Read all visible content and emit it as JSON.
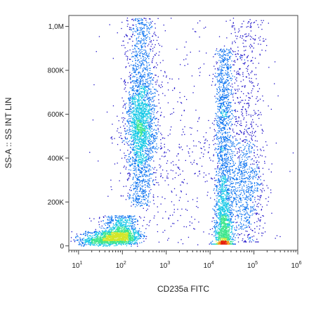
{
  "chart_data": {
    "type": "scatter",
    "plot_style": "flow cytometry density dot plot (pseudocolor)",
    "xlabel": "CD235a FITC",
    "ylabel": "SS-A :: SS INT LIN",
    "x_scale": "log",
    "y_scale": "linear",
    "xlim": [
      6,
      1000000
    ],
    "ylim": [
      -20000,
      1050000
    ],
    "x_ticks": [
      {
        "value": 10,
        "base": "10",
        "exp": "1"
      },
      {
        "value": 100,
        "base": "10",
        "exp": "2"
      },
      {
        "value": 1000,
        "base": "10",
        "exp": "3"
      },
      {
        "value": 10000,
        "base": "10",
        "exp": "4"
      },
      {
        "value": 100000,
        "base": "10",
        "exp": "5"
      },
      {
        "value": 1000000,
        "base": "10",
        "exp": "6"
      }
    ],
    "y_ticks": [
      {
        "value": 0,
        "label": "0"
      },
      {
        "value": 200000,
        "label": "200K"
      },
      {
        "value": 400000,
        "label": "400K"
      },
      {
        "value": 600000,
        "label": "600K"
      },
      {
        "value": 800000,
        "label": "800K"
      },
      {
        "value": 1000000,
        "label": "1,0M"
      }
    ],
    "grid": false,
    "legend": "none",
    "density_colors": [
      "#1a0dc8",
      "#0a72f0",
      "#14c8e6",
      "#3ce68c",
      "#d2e628",
      "#f59614",
      "#e61e0a"
    ],
    "populations": [
      {
        "x_center": 260,
        "y_range": [
          180000,
          1040000
        ],
        "x_spread_log": 0.17,
        "y_peak": 560000,
        "count": 2600
      },
      {
        "x_center": 90,
        "y_range": [
          10000,
          140000
        ],
        "x_spread_log": 0.22,
        "y_peak": 45000,
        "count": 1300
      },
      {
        "x_center": 35,
        "y_range": [
          0,
          70000
        ],
        "x_spread_log": 0.3,
        "y_peak": 25000,
        "count": 700
      },
      {
        "x_center": 20000,
        "y_range": [
          10000,
          900000
        ],
        "x_spread_log": 0.1,
        "y_peak": 30000,
        "count": 2600
      },
      {
        "x_center": 60000,
        "y_range": [
          20000,
          1040000
        ],
        "x_spread_log": 0.22,
        "y_peak": 300000,
        "count": 1200
      },
      {
        "x_center": 1500,
        "y_range": [
          0,
          1040000
        ],
        "x_spread_log": 0.9,
        "y_peak": 400000,
        "count": 500
      }
    ]
  }
}
